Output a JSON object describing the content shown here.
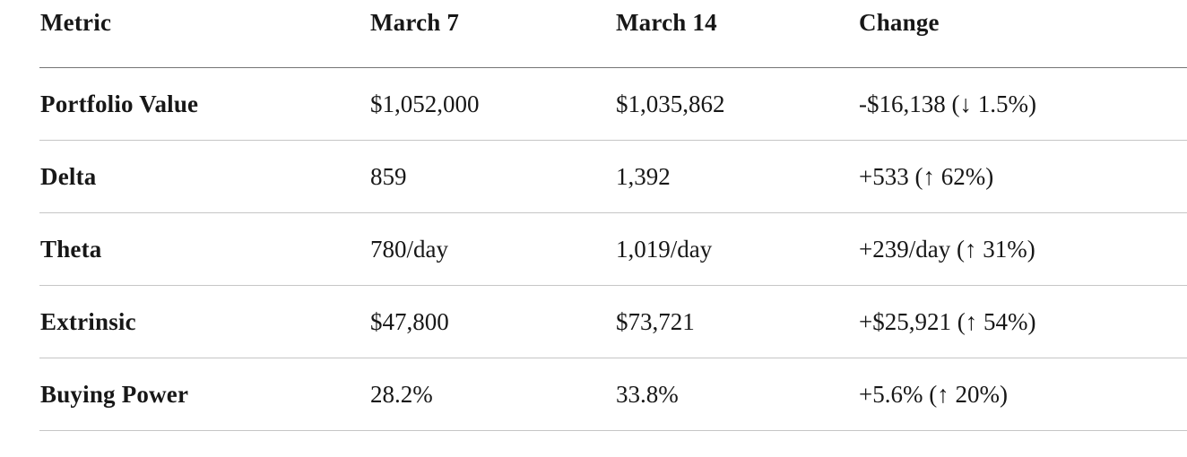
{
  "chart_data": {
    "type": "table",
    "columns": [
      "Metric",
      "March 7",
      "March 14",
      "Change"
    ],
    "rows": [
      [
        "Portfolio Value",
        "$1,052,000",
        "$1,035,862",
        "-$16,138 (↓ 1.5%)"
      ],
      [
        "Delta",
        "859",
        "1,392",
        "+533 (↑ 62%)"
      ],
      [
        "Theta",
        "780/day",
        "1,019/day",
        "+239/day (↑ 31%)"
      ],
      [
        "Extrinsic",
        "$47,800",
        "$73,721",
        "+$25,921 (↑ 54%)"
      ],
      [
        "Buying Power",
        "28.2%",
        "33.8%",
        "+5.6% (↑ 20%)"
      ]
    ],
    "title": "",
    "legend": null,
    "grid": "horizontal-rules-only"
  },
  "colors": {
    "text": "#171717",
    "header_rule": "#757575",
    "row_rule": "#c6c6c6",
    "background": "#ffffff"
  }
}
